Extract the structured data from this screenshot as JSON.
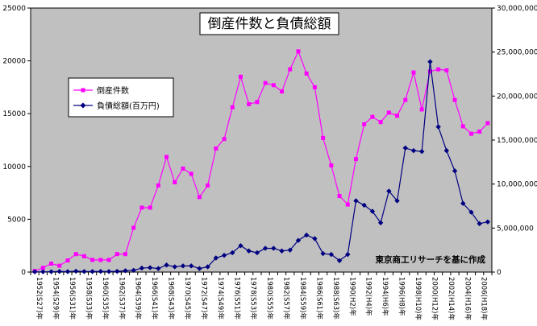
{
  "chart_data": {
    "type": "line",
    "title": "倒産件数と負債総額",
    "annotation": "東京商工リサーチを基に作成",
    "x": [
      "1952(S27)年",
      "1953(S28)年",
      "1954(S29)年",
      "1955(S30)年",
      "1956(S31)年",
      "1957(S32)年",
      "1958(S33)年",
      "1959(S34)年",
      "1960(S35)年",
      "1961(S36)年",
      "1962(S37)年",
      "1963(S38)年",
      "1964(S39)年",
      "1965(S40)年",
      "1966(S41)年",
      "1967(S42)年",
      "1968(S43)年",
      "1969(S44)年",
      "1970(S45)年",
      "1971(S46)年",
      "1972(S47)年",
      "1973(S48)年",
      "1974(S49)年",
      "1975(S50)年",
      "1976(S51)年",
      "1977(S52)年",
      "1978(S53)年",
      "1979(S54)年",
      "1980(S55)年",
      "1981(S56)年",
      "1982(S57)年",
      "1983(S58)年",
      "1984(S59)年",
      "1985(S60)年",
      "1986(S61)年",
      "1987(S62)年",
      "1988(S63)年",
      "1989(H1)年",
      "1990(H2)年",
      "1991(H3)年",
      "1992(H4)年",
      "1993(H5)年",
      "1994(H6)年",
      "1995(H7)年",
      "1996(H8)年",
      "1997(H9)年",
      "1998(H10)年",
      "1999(H11)年",
      "2000(H12)年",
      "2001(H13)年",
      "2002(H14)年",
      "2003(H15)年",
      "2004(H16)年",
      "2005(H17)年",
      "2006(H18)年",
      "2007(H19)年"
    ],
    "x_tick_labels": [
      "1952(S27)年",
      "1954(S29)年",
      "1956(S31)年",
      "1958(S33)年",
      "1960(S35)年",
      "1962(S37)年",
      "1964(S39)年",
      "1966(S41)年",
      "1968(S43)年",
      "1970(S45)年",
      "1972(S47)年",
      "1974(S49)年",
      "1976(S51)年",
      "1978(S53)年",
      "1980(S55)年",
      "1982(S57)年",
      "1984(S59)年",
      "1986(S61)年",
      "1988(S63)年",
      "1990(H2)年",
      "1992(H4)年",
      "1994(H6)年",
      "1996(H8)年",
      "1998(H10)年",
      "2000(H12)年",
      "2002(H14)年",
      "2004(H16)年",
      "2006(H18)年"
    ],
    "series": [
      {
        "name": "倒産件数",
        "axis": "left",
        "color": "#ff00ff",
        "marker": "square",
        "values": [
          100,
          400,
          800,
          600,
          1100,
          1700,
          1500,
          1150,
          1150,
          1150,
          1700,
          1700,
          4200,
          6100,
          6100,
          8200,
          10900,
          8500,
          9800,
          9300,
          7100,
          8200,
          11700,
          12600,
          15600,
          18500,
          15900,
          16100,
          17900,
          17700,
          17100,
          19200,
          20900,
          18800,
          17500,
          12700,
          10100,
          7200,
          6400,
          10700,
          14000,
          14700,
          14200,
          15100,
          14800,
          16300,
          18900,
          15400,
          19000,
          19200,
          19100,
          16300,
          13800,
          13100,
          13300,
          14100
        ]
      },
      {
        "name": "負債総額(百万円)",
        "axis": "right",
        "color": "#000080",
        "marker": "diamond",
        "values": [
          30000,
          30000,
          40000,
          70000,
          50000,
          100000,
          60000,
          60000,
          70000,
          60000,
          80000,
          150000,
          200000,
          450000,
          500000,
          400000,
          800000,
          600000,
          700000,
          700000,
          400000,
          600000,
          1600000,
          1900000,
          2200000,
          3000000,
          2400000,
          2200000,
          2700000,
          2700000,
          2400000,
          2500000,
          3600000,
          4200000,
          3800000,
          2100000,
          2000000,
          1300000,
          2000000,
          8100000,
          7600000,
          6900000,
          5600000,
          9200000,
          8100000,
          14100000,
          13800000,
          13700000,
          23900000,
          16500000,
          13800000,
          11500000,
          7800000,
          6800000,
          5500000,
          5700000
        ]
      }
    ],
    "ylim_left": [
      0,
      25000
    ],
    "ylim_right": [
      0,
      30000000
    ],
    "yticks_left": [
      "0",
      "5000",
      "10000",
      "15000",
      "20000",
      "25000"
    ],
    "yticks_right": [
      "0",
      "5,000,000",
      "10,000,000",
      "15,000,000",
      "20,000,000",
      "25,000,000",
      "30,000,000"
    ],
    "grid": false,
    "legend_position": "upper-left-inside",
    "plot_background": "#c0c0c0"
  }
}
